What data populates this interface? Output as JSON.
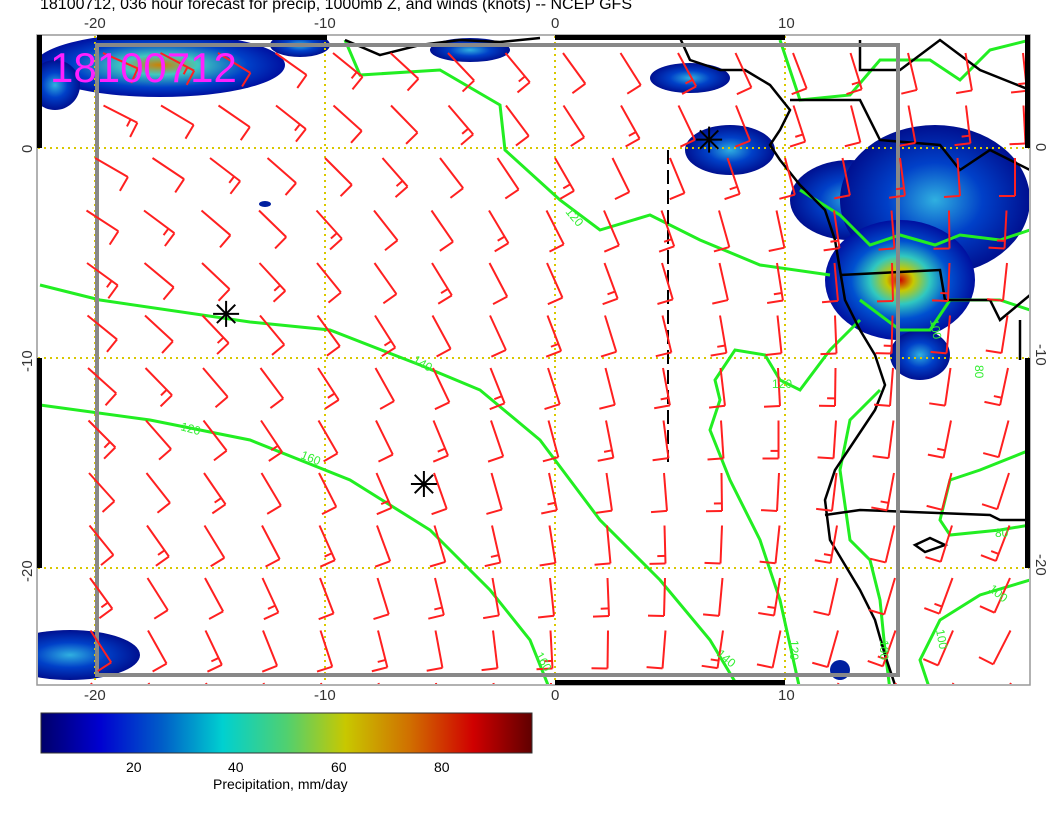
{
  "title": "18100712, 036 hour forecast for precip, 1000mb Z, and winds (knots) -- NCEP GFS",
  "stamp": "18100712",
  "map": {
    "lon_range": [
      -22.6,
      20.6
    ],
    "lat_range": [
      -25.6,
      5.4
    ],
    "lon_ticks": [
      "-20",
      "-10",
      "0",
      "10"
    ],
    "lat_ticks": [
      "0",
      "-10",
      "-20"
    ],
    "gridlines": "dotted yellow",
    "colors": {
      "contour": "#22ee22",
      "wind": "#ff2020",
      "coast": "#000000",
      "box": "#888888",
      "grid": "#d8c800",
      "stamp": "#ff20ff"
    },
    "contour_labels": [
      "120",
      "140",
      "160",
      "120",
      "120",
      "100",
      "80",
      "80",
      "100",
      "100",
      "120",
      "140",
      "160",
      "100"
    ],
    "markers": [
      {
        "symbol": "asterisk",
        "lon": -14.3,
        "lat": -7.9
      },
      {
        "symbol": "asterisk",
        "lon": -5.7,
        "lat": -16.0
      },
      {
        "symbol": "asterisk",
        "lon": 6.7,
        "lat": 0.4
      }
    ],
    "wind_barbs": "SE trade winds, ~10-20 kt"
  },
  "colorbar": {
    "label": "Precipitation, mm/day",
    "range": [
      1.5,
      97.5
    ],
    "ticks": [
      "20",
      "40",
      "60",
      "80"
    ],
    "colors": [
      "#00006a",
      "#0000d0",
      "#0070c8",
      "#00d0d0",
      "#50d070",
      "#c8c800",
      "#d07000",
      "#d00000",
      "#600000"
    ]
  }
}
